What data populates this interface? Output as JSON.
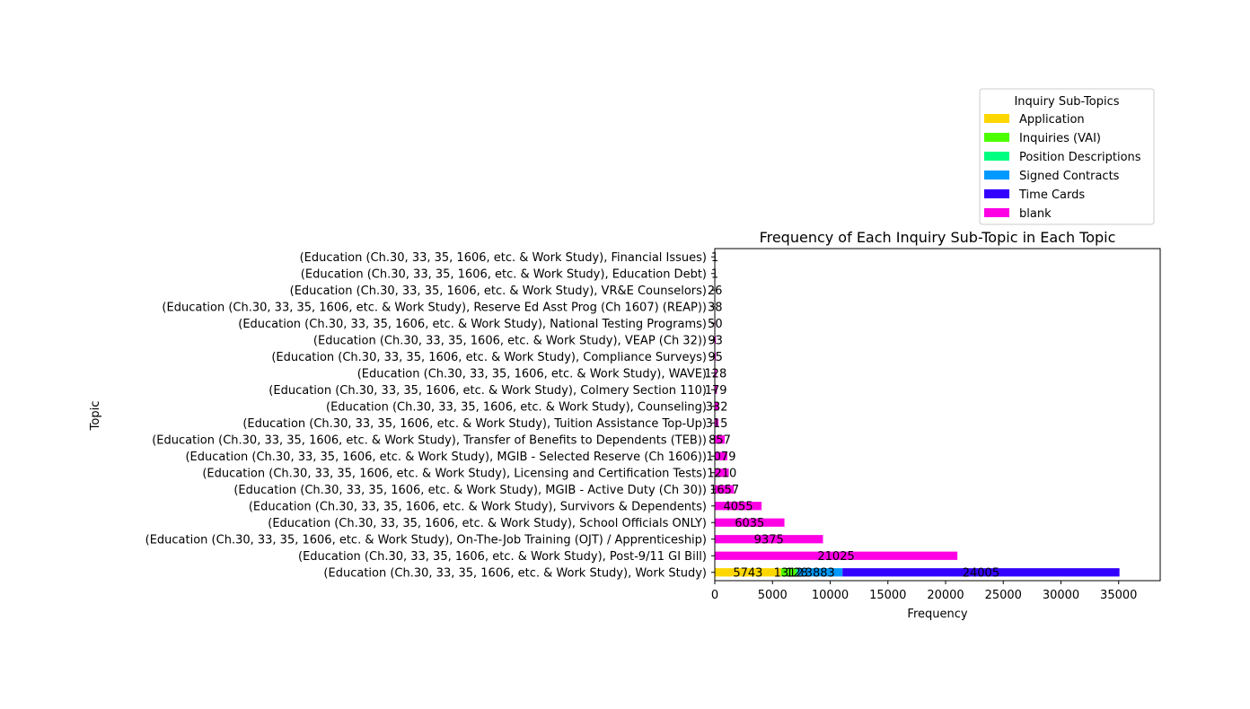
{
  "chart_data": {
    "type": "bar",
    "orientation": "horizontal",
    "stacked": true,
    "title": "Frequency of Each Inquiry Sub-Topic in Each Topic",
    "xlabel": "Frequency",
    "ylabel": "Topic",
    "xlim": [
      0,
      38600
    ],
    "xticks": [
      0,
      5000,
      10000,
      15000,
      20000,
      25000,
      30000,
      35000
    ],
    "grid": false,
    "legend": {
      "title": "Inquiry Sub-Topics",
      "placement": "upper-right, outside above plot"
    },
    "categories": [
      "(Education (Ch.30, 33, 35, 1606, etc. & Work Study), Work Study)",
      "(Education (Ch.30, 33, 35, 1606, etc. & Work Study), Post-9/11 GI Bill)",
      "(Education (Ch.30, 33, 35, 1606, etc. & Work Study), On-The-Job Training (OJT) / Apprenticeship)",
      "(Education (Ch.30, 33, 35, 1606, etc. & Work Study), School Officials ONLY)",
      "(Education (Ch.30, 33, 35, 1606, etc. & Work Study), Survivors & Dependents)",
      "(Education (Ch.30, 33, 35, 1606, etc. & Work Study), MGIB - Active Duty (Ch 30))",
      "(Education (Ch.30, 33, 35, 1606, etc. & Work Study), Licensing and Certification Tests)",
      "(Education (Ch.30, 33, 35, 1606, etc. & Work Study), MGIB - Selected Reserve (Ch 1606))",
      "(Education (Ch.30, 33, 35, 1606, etc. & Work Study), Transfer of Benefits to Dependents (TEB))",
      "(Education (Ch.30, 33, 35, 1606, etc. & Work Study), Tuition Assistance Top-Up)",
      "(Education (Ch.30, 33, 35, 1606, etc. & Work Study), Counseling)",
      "(Education (Ch.30, 33, 35, 1606, etc. & Work Study), Colmery Section 110)",
      "(Education (Ch.30, 33, 35, 1606, etc. & Work Study), WAVE)",
      "(Education (Ch.30, 33, 35, 1606, etc. & Work Study), Compliance Surveys)",
      "(Education (Ch.30, 33, 35, 1606, etc. & Work Study), VEAP (Ch 32))",
      "(Education (Ch.30, 33, 35, 1606, etc. & Work Study), National Testing Programs)",
      "(Education (Ch.30, 33, 35, 1606, etc. & Work Study), Reserve Ed Asst Prog (Ch 1607) (REAP))",
      "(Education (Ch.30, 33, 35, 1606, etc. & Work Study), VR&E Counselors)",
      "(Education (Ch.30, 33, 35, 1606, etc. & Work Study), Education Debt)",
      "(Education (Ch.30, 33, 35, 1606, etc. & Work Study), Financial Issues)"
    ],
    "series": [
      {
        "name": "Application",
        "color": "#ffd700",
        "values": [
          5743,
          0,
          0,
          0,
          0,
          0,
          0,
          0,
          0,
          0,
          0,
          0,
          0,
          0,
          0,
          0,
          0,
          0,
          0,
          0
        ]
      },
      {
        "name": "Inquiries (VAI)",
        "color": "#4cff00",
        "values": [
          1312,
          0,
          0,
          0,
          0,
          0,
          0,
          0,
          0,
          0,
          0,
          0,
          0,
          0,
          0,
          0,
          0,
          0,
          0,
          0
        ]
      },
      {
        "name": "Position Descriptions",
        "color": "#00ff80",
        "values": [
          128,
          0,
          0,
          0,
          0,
          0,
          0,
          0,
          0,
          0,
          0,
          0,
          0,
          0,
          0,
          0,
          0,
          0,
          0,
          0
        ]
      },
      {
        "name": "Signed Contracts",
        "color": "#0099ff",
        "values": [
          3883,
          0,
          0,
          0,
          0,
          0,
          0,
          0,
          0,
          0,
          0,
          0,
          0,
          0,
          0,
          0,
          0,
          0,
          0,
          0
        ]
      },
      {
        "name": "Time Cards",
        "color": "#3300ff",
        "values": [
          24005,
          0,
          0,
          0,
          0,
          0,
          0,
          0,
          0,
          0,
          0,
          0,
          0,
          0,
          0,
          0,
          0,
          0,
          0,
          0
        ]
      },
      {
        "name": "blank",
        "color": "#ff00e5",
        "values": [
          0,
          21025,
          9375,
          6035,
          4055,
          1657,
          1210,
          1079,
          857,
          315,
          332,
          179,
          128,
          95,
          93,
          50,
          38,
          26,
          1,
          1
        ]
      }
    ]
  }
}
